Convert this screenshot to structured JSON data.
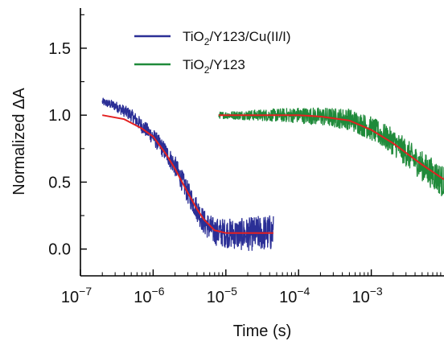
{
  "chart_data": {
    "type": "line",
    "xlabel": "Time (s)",
    "ylabel": "Normalized ΔA",
    "x_scale": "log",
    "xlim": [
      1e-07,
      0.01
    ],
    "ylim": [
      -0.2,
      1.8
    ],
    "x_ticks": [
      {
        "value": 1e-07,
        "base": "10",
        "exp": "−7"
      },
      {
        "value": 1e-06,
        "base": "10",
        "exp": "−6"
      },
      {
        "value": 1e-05,
        "base": "10",
        "exp": "−5"
      },
      {
        "value": 0.0001,
        "base": "10",
        "exp": "−4"
      },
      {
        "value": 0.001,
        "base": "10",
        "exp": "−3"
      }
    ],
    "y_ticks": [
      {
        "value": 0.0,
        "label": "0.0"
      },
      {
        "value": 0.5,
        "label": "0.5"
      },
      {
        "value": 1.0,
        "label": "1.0"
      },
      {
        "value": 1.5,
        "label": "1.5"
      }
    ],
    "legend": {
      "placement": "top-left",
      "entries": [
        {
          "color": "#2b2f96",
          "parts": [
            [
              "TiO",
              ""
            ],
            [
              "2",
              "sub"
            ],
            [
              "/Y123/Cu(II/I)",
              ""
            ]
          ]
        },
        {
          "color": "#1f8a3a",
          "parts": [
            [
              "TiO",
              ""
            ],
            [
              "2",
              "sub"
            ],
            [
              "/Y123",
              ""
            ]
          ]
        }
      ]
    },
    "series": [
      {
        "color": "#2b2f96",
        "style": "noisy",
        "noise": 0.07,
        "x": [
          2e-07,
          3e-07,
          5e-07,
          7e-07,
          1e-06,
          1.5e-06,
          2e-06,
          3e-06,
          4e-06,
          5e-06,
          7e-06,
          1e-05,
          1.5e-05,
          2e-05,
          3e-05,
          4.5e-05
        ],
        "y": [
          1.1,
          1.07,
          1.0,
          0.92,
          0.84,
          0.72,
          0.62,
          0.42,
          0.3,
          0.2,
          0.13,
          0.12,
          0.11,
          0.11,
          0.12,
          0.12
        ]
      },
      {
        "color": "#1f8a3a",
        "style": "noisy",
        "noise": 0.06,
        "x": [
          8e-06,
          1e-05,
          2e-05,
          5e-05,
          0.0001,
          0.0002,
          0.0005,
          0.001,
          0.002,
          0.005,
          0.01
        ],
        "y": [
          1.0,
          1.0,
          1.0,
          1.0,
          1.0,
          0.99,
          0.97,
          0.9,
          0.8,
          0.62,
          0.5
        ]
      },
      {
        "color": "#e32020",
        "style": "fit",
        "x": [
          2e-07,
          4e-07,
          7e-07,
          1e-06,
          1.5e-06,
          2e-06,
          3e-06,
          4e-06,
          5e-06,
          7e-06,
          1e-05,
          2e-05,
          4.5e-05
        ],
        "y": [
          1.0,
          0.97,
          0.9,
          0.84,
          0.71,
          0.6,
          0.42,
          0.3,
          0.22,
          0.14,
          0.12,
          0.12,
          0.12
        ]
      },
      {
        "color": "#e32020",
        "style": "fit",
        "x": [
          8e-06,
          5e-05,
          0.0001,
          0.0002,
          0.0005,
          0.001,
          0.002,
          0.005,
          0.01
        ],
        "y": [
          1.0,
          1.0,
          1.0,
          0.99,
          0.96,
          0.89,
          0.79,
          0.63,
          0.52
        ]
      }
    ]
  }
}
